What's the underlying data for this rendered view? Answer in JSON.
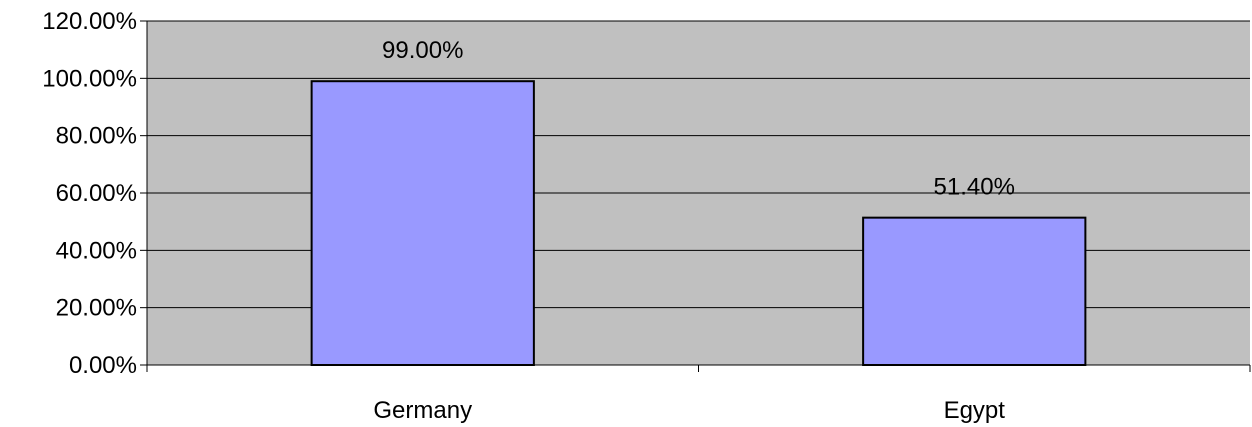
{
  "chart_data": {
    "type": "bar",
    "categories": [
      "Germany",
      "Egypt"
    ],
    "values": [
      99.0,
      51.4
    ],
    "data_labels": [
      "99.00%",
      "51.40%"
    ],
    "ylim": [
      0,
      120
    ],
    "yticks": [
      0,
      20,
      40,
      60,
      80,
      100,
      120
    ],
    "ytick_labels": [
      "0.00%",
      "20.00%",
      "40.00%",
      "60.00%",
      "80.00%",
      "100.00%",
      "120.00%"
    ],
    "grid": true,
    "legend": "none",
    "title": "",
    "xlabel": "",
    "ylabel": "",
    "colors": {
      "bar_fill": "#9999ff",
      "bar_stroke": "#000000",
      "plot_background": "#c0c0c0",
      "gridline": "#000000"
    }
  }
}
